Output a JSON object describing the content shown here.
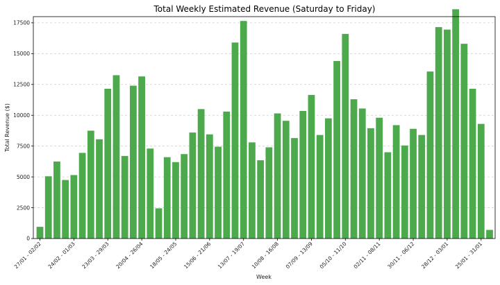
{
  "chart_data": {
    "type": "bar",
    "title": "Total Weekly Estimated Revenue (Saturday to Friday)",
    "xlabel": "Week",
    "ylabel": "Total Revenue ($)",
    "ylim": [
      0,
      18000
    ],
    "yticks": [
      0,
      2500,
      5000,
      7500,
      10000,
      12500,
      15000,
      17500
    ],
    "ytick_labels": [
      "0",
      "2500",
      "5000",
      "7500",
      "10000",
      "12500",
      "15000",
      "17500"
    ],
    "grid": "y-dashed",
    "color": "#4caa4c",
    "values": [
      950,
      5050,
      6250,
      4750,
      5150,
      6950,
      8750,
      8050,
      12150,
      13250,
      6700,
      12400,
      13150,
      7300,
      2450,
      6600,
      6200,
      6850,
      8600,
      10500,
      8450,
      7450,
      10300,
      15900,
      17650,
      7800,
      6350,
      7400,
      10150,
      9550,
      8150,
      10350,
      11650,
      8400,
      9750,
      14400,
      16600,
      11300,
      10550,
      8950,
      9800,
      7000,
      9200,
      7550,
      8900,
      8400,
      13550,
      17150,
      16950,
      18600,
      15800,
      12150,
      9300,
      700
    ],
    "xtick_positions": [
      0,
      4,
      8,
      12,
      16,
      20,
      24,
      28,
      32,
      36,
      40,
      44,
      48,
      52
    ],
    "xtick_labels": [
      "27/01 - 02/02",
      "24/02 - 01/03",
      "23/03 - 29/03",
      "20/04 - 26/04",
      "18/05 - 24/05",
      "15/06 - 21/06",
      "13/07 - 19/07",
      "10/08 - 16/08",
      "07/09 - 13/09",
      "05/10 - 11/10",
      "02/11 - 08/11",
      "30/11 - 06/12",
      "28/12 - 03/01",
      "25/01 - 31/01"
    ]
  }
}
